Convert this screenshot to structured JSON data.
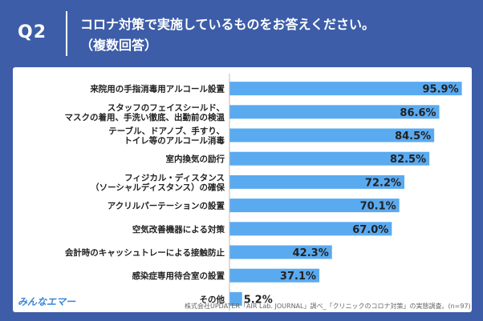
{
  "header": {
    "q_label": "Q2",
    "question_line1": "コロナ対策で実施しているものをお答えください。",
    "question_line2": "（複数回答）"
  },
  "footer": {
    "logo_text": "みんなエマー",
    "source": "株式会社UPDATER「AIR Lab. JOURNAL」調べ_「クリニックのコロナ対策」の実態調査。(n=97)"
  },
  "colors": {
    "bar": "#5aaaf0",
    "background": "#3d5da8"
  },
  "chart_data": {
    "type": "bar",
    "orientation": "horizontal",
    "title": "",
    "xlabel": "",
    "ylabel": "",
    "xlim": [
      0,
      100
    ],
    "unit": "%",
    "categories": [
      [
        "来院用の手指消毒用アルコール設置"
      ],
      [
        "スタッフのフェイスシールド、",
        "マスクの着用、手洗い徹底、出勤前の検温"
      ],
      [
        "テーブル、ドアノブ、手すり、",
        "トイレ等のアルコール消毒"
      ],
      [
        "室内換気の励行"
      ],
      [
        "フィジカル・ディスタンス",
        "（ソーシャルディスタンス）の確保"
      ],
      [
        "アクリルパーテーションの設置"
      ],
      [
        "空気改善機器による対策"
      ],
      [
        "会計時のキャッシュトレーによる接触防止"
      ],
      [
        "感染症専用待合室の設置"
      ],
      [
        "その他"
      ]
    ],
    "values": [
      95.9,
      86.6,
      84.5,
      82.5,
      72.2,
      70.1,
      67.0,
      42.3,
      37.1,
      5.2
    ],
    "value_labels": [
      "95.9%",
      "86.6%",
      "84.5%",
      "82.5%",
      "72.2%",
      "70.1%",
      "67.0%",
      "42.3%",
      "37.1%",
      "5.2%"
    ]
  }
}
